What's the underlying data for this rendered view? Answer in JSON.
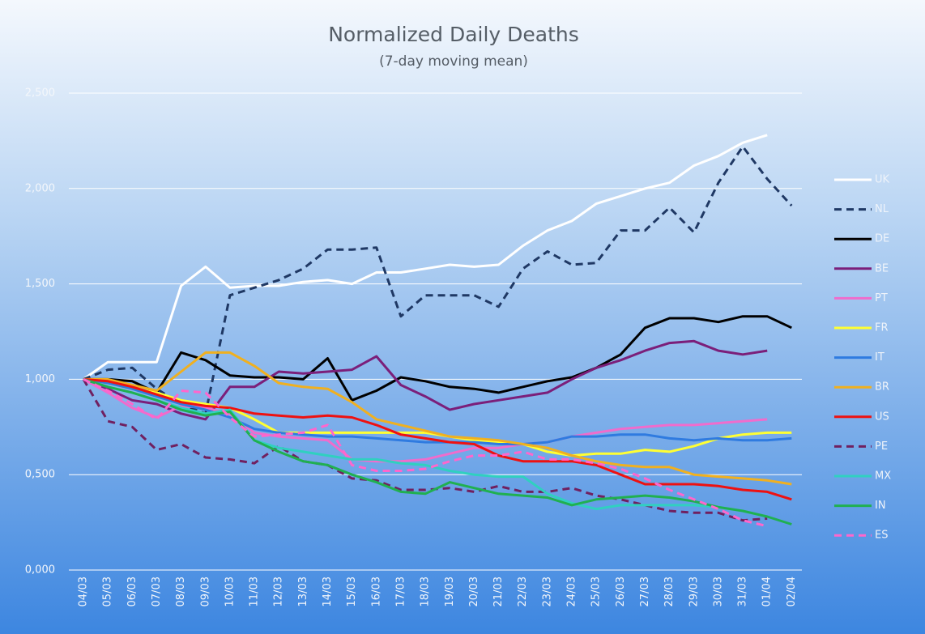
{
  "chart_data": {
    "type": "line",
    "title": "Normalized Daily Deaths",
    "subtitle": "(7-day moving mean)",
    "categories": [
      "04/03",
      "05/03",
      "06/03",
      "07/03",
      "08/03",
      "09/03",
      "10/03",
      "11/03",
      "12/03",
      "13/03",
      "14/03",
      "15/03",
      "16/03",
      "17/03",
      "18/03",
      "19/03",
      "20/03",
      "21/03",
      "22/03",
      "23/03",
      "24/03",
      "25/03",
      "26/03",
      "27/03",
      "28/03",
      "29/03",
      "30/03",
      "31/03",
      "01/04",
      "02/04"
    ],
    "ylim": [
      0,
      2.5
    ],
    "yticks": [
      {
        "value": 0,
        "label": "0,000"
      },
      {
        "value": 0.5,
        "label": "0,500"
      },
      {
        "value": 1,
        "label": "1,000"
      },
      {
        "value": 1.5,
        "label": "1,500"
      },
      {
        "value": 2,
        "label": "2,000"
      },
      {
        "value": 2.5,
        "label": "2,500"
      }
    ],
    "grid": true,
    "legend": "right",
    "series": [
      {
        "name": "UK",
        "color": "#ffffff",
        "dashed": false,
        "values": [
          1.0,
          1.09,
          1.09,
          1.09,
          1.49,
          1.59,
          1.48,
          1.49,
          1.49,
          1.51,
          1.52,
          1.5,
          1.56,
          1.56,
          1.58,
          1.6,
          1.59,
          1.6,
          1.7,
          1.78,
          1.83,
          1.92,
          1.96,
          2.0,
          2.03,
          2.12,
          2.17,
          2.24,
          2.28,
          null
        ]
      },
      {
        "name": "NL",
        "color": "#1f3864",
        "dashed": true,
        "values": [
          1.0,
          1.05,
          1.06,
          0.95,
          0.87,
          0.82,
          1.44,
          1.48,
          1.52,
          1.58,
          1.68,
          1.68,
          1.69,
          1.33,
          1.44,
          1.44,
          1.44,
          1.38,
          1.58,
          1.67,
          1.6,
          1.61,
          1.78,
          1.78,
          1.9,
          1.77,
          2.03,
          2.22,
          2.05,
          1.91
        ]
      },
      {
        "name": "DE",
        "color": "#000000",
        "dashed": false,
        "values": [
          1.0,
          1.0,
          0.99,
          0.93,
          1.14,
          1.1,
          1.02,
          1.01,
          1.01,
          1.0,
          1.11,
          0.89,
          0.94,
          1.01,
          0.99,
          0.96,
          0.95,
          0.93,
          0.96,
          0.99,
          1.01,
          1.06,
          1.13,
          1.27,
          1.32,
          1.32,
          1.3,
          1.33,
          1.33,
          1.27
        ]
      },
      {
        "name": "BE",
        "color": "#7b1f7a",
        "dashed": false,
        "values": [
          1.0,
          0.95,
          0.89,
          0.87,
          0.82,
          0.79,
          0.96,
          0.96,
          1.04,
          1.03,
          1.04,
          1.05,
          1.12,
          0.97,
          0.91,
          0.84,
          0.87,
          0.89,
          0.91,
          0.93,
          1.0,
          1.06,
          1.1,
          1.15,
          1.19,
          1.2,
          1.15,
          1.13,
          1.15,
          null
        ]
      },
      {
        "name": "PT",
        "color": "#f06ccc",
        "dashed": false,
        "values": [
          1.0,
          0.93,
          0.85,
          0.8,
          0.86,
          0.85,
          0.82,
          0.72,
          0.7,
          0.69,
          0.68,
          0.58,
          0.57,
          0.57,
          0.58,
          0.61,
          0.64,
          0.64,
          0.66,
          0.67,
          0.7,
          0.72,
          0.74,
          0.75,
          0.76,
          0.76,
          0.77,
          0.78,
          0.79,
          null
        ]
      },
      {
        "name": "FR",
        "color": "#ffff33",
        "dashed": false,
        "values": [
          1.0,
          0.98,
          0.95,
          0.93,
          0.89,
          0.87,
          0.85,
          0.79,
          0.72,
          0.72,
          0.72,
          0.72,
          0.72,
          0.72,
          0.72,
          0.7,
          0.68,
          0.67,
          0.66,
          0.62,
          0.6,
          0.61,
          0.61,
          0.63,
          0.62,
          0.65,
          0.69,
          0.71,
          0.72,
          0.72
        ]
      },
      {
        "name": "IT",
        "color": "#2f7be0",
        "dashed": false,
        "values": [
          1.0,
          0.98,
          0.95,
          0.91,
          0.87,
          0.84,
          0.8,
          0.74,
          0.72,
          0.71,
          0.7,
          0.7,
          0.69,
          0.68,
          0.67,
          0.67,
          0.67,
          0.66,
          0.66,
          0.67,
          0.7,
          0.7,
          0.71,
          0.71,
          0.69,
          0.68,
          0.69,
          0.68,
          0.68,
          0.69
        ]
      },
      {
        "name": "BR",
        "color": "#f0b020",
        "dashed": false,
        "values": [
          1.0,
          1.0,
          0.97,
          0.94,
          1.04,
          1.14,
          1.14,
          1.07,
          0.98,
          0.96,
          0.95,
          0.88,
          0.79,
          0.76,
          0.73,
          0.7,
          0.69,
          0.68,
          0.66,
          0.64,
          0.6,
          0.57,
          0.55,
          0.54,
          0.54,
          0.5,
          0.49,
          0.48,
          0.47,
          0.45
        ]
      },
      {
        "name": "US",
        "color": "#ee1111",
        "dashed": false,
        "values": [
          1.0,
          0.99,
          0.96,
          0.92,
          0.88,
          0.86,
          0.85,
          0.82,
          0.81,
          0.8,
          0.81,
          0.8,
          0.76,
          0.71,
          0.69,
          0.67,
          0.66,
          0.6,
          0.57,
          0.57,
          0.57,
          0.55,
          0.5,
          0.45,
          0.45,
          0.45,
          0.44,
          0.42,
          0.41,
          0.37
        ]
      },
      {
        "name": "PE",
        "color": "#702060",
        "dashed": true,
        "values": [
          1.0,
          0.78,
          0.75,
          0.63,
          0.66,
          0.59,
          0.58,
          0.56,
          0.65,
          0.57,
          0.55,
          0.48,
          0.47,
          0.42,
          0.42,
          0.43,
          0.41,
          0.44,
          0.41,
          0.41,
          0.43,
          0.39,
          0.37,
          0.34,
          0.31,
          0.3,
          0.3,
          0.26,
          0.27,
          null
        ]
      },
      {
        "name": "MX",
        "color": "#30d0c0",
        "dashed": false,
        "values": [
          1.0,
          0.96,
          0.93,
          0.89,
          0.85,
          0.82,
          0.84,
          0.68,
          0.64,
          0.62,
          0.6,
          0.58,
          0.58,
          0.56,
          0.55,
          0.52,
          0.5,
          0.49,
          0.49,
          0.4,
          0.35,
          0.32,
          0.34,
          0.34,
          0.34,
          0.34,
          0.33,
          0.31,
          0.28,
          null
        ]
      },
      {
        "name": "IN",
        "color": "#20b050",
        "dashed": false,
        "values": [
          1.0,
          0.96,
          0.93,
          0.89,
          0.84,
          0.81,
          0.83,
          0.68,
          0.62,
          0.57,
          0.55,
          0.5,
          0.46,
          0.41,
          0.4,
          0.46,
          0.43,
          0.4,
          0.39,
          0.38,
          0.34,
          0.37,
          0.38,
          0.39,
          0.38,
          0.36,
          0.33,
          0.31,
          0.28,
          0.24
        ]
      },
      {
        "name": "ES",
        "color": "#ff66cc",
        "dashed": true,
        "values": [
          1.0,
          0.94,
          0.87,
          0.79,
          0.94,
          0.93,
          0.8,
          0.7,
          0.71,
          0.72,
          0.76,
          0.55,
          0.52,
          0.52,
          0.53,
          0.57,
          0.6,
          0.6,
          0.62,
          0.58,
          0.58,
          0.56,
          0.53,
          0.48,
          0.42,
          0.37,
          0.32,
          0.26,
          0.23,
          null
        ]
      }
    ]
  }
}
